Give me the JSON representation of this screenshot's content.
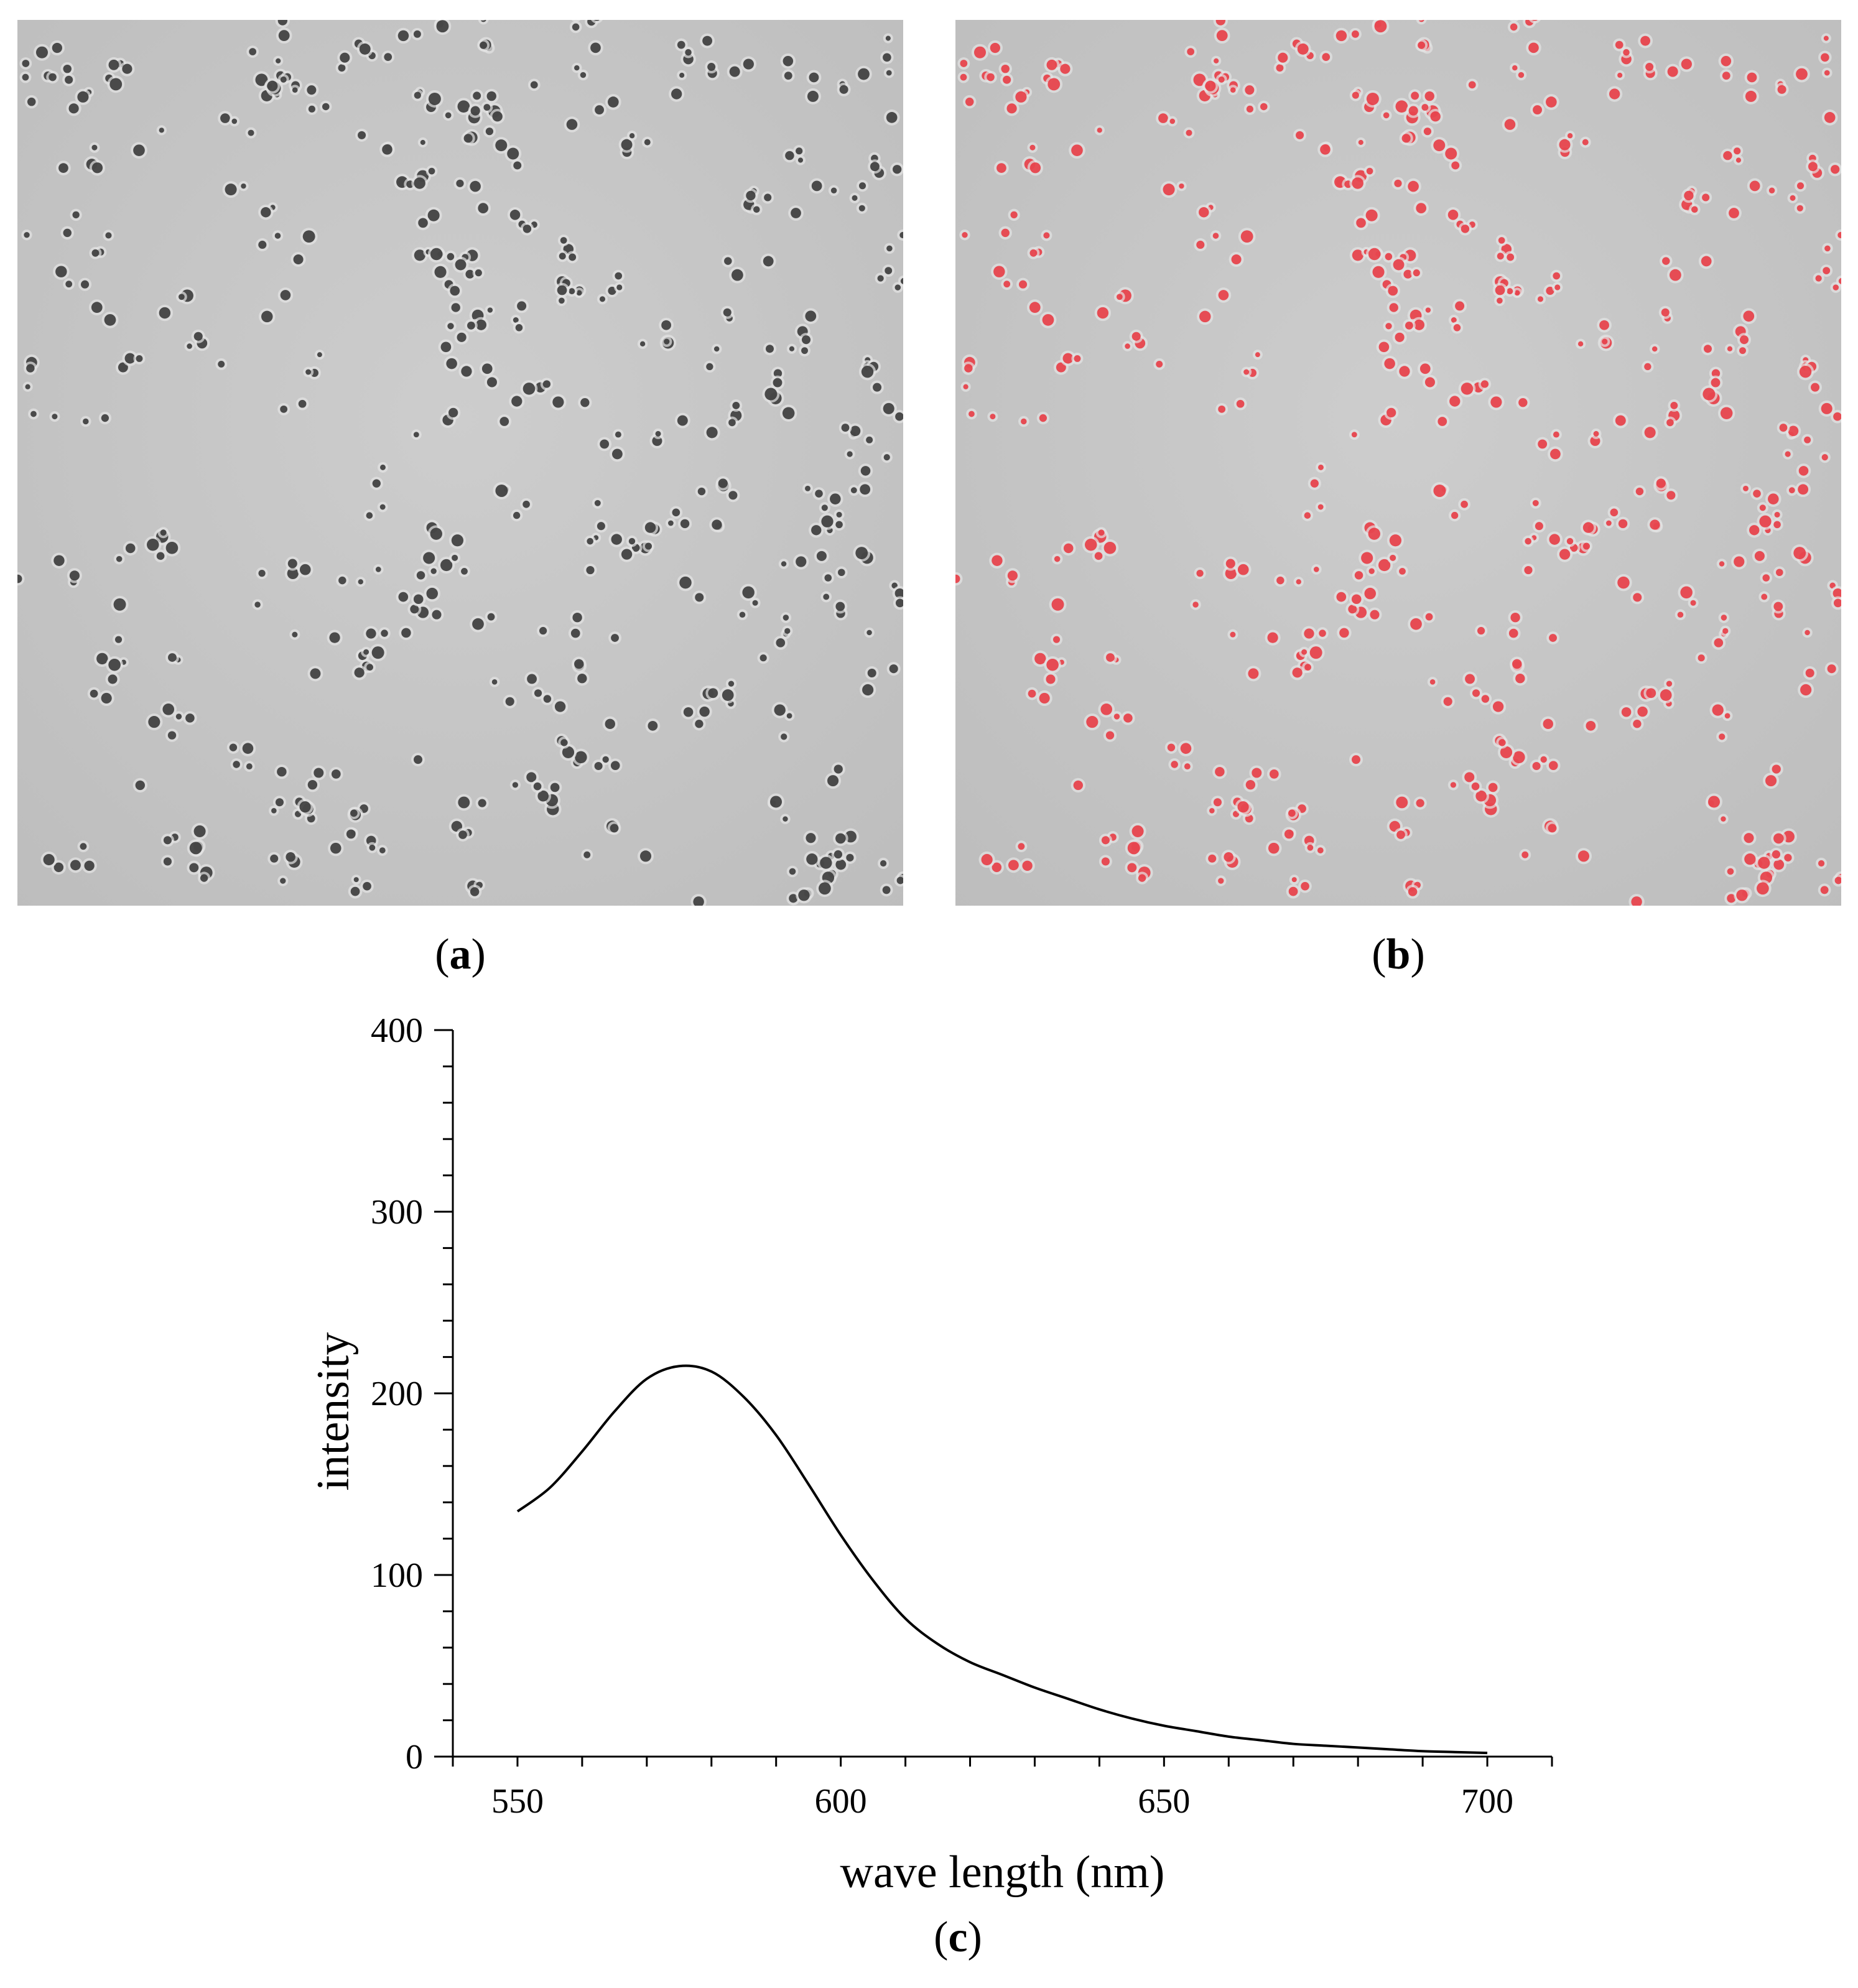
{
  "panels": {
    "a": {
      "label_open": "(",
      "label_letter": "a",
      "label_close": ")"
    },
    "b": {
      "label_open": "(",
      "label_letter": "b",
      "label_close": ")"
    },
    "c": {
      "label_open": "(",
      "label_letter": "c",
      "label_close": ")"
    }
  },
  "colors": {
    "micrograph_background": "#c6c6c6",
    "particle_dark": "#3a3a3a",
    "fluorescence_red": "#e8323c",
    "curve": "#000000"
  },
  "chart_data": {
    "type": "line",
    "title": "",
    "xlabel": "wave length (nm)",
    "ylabel": "intensity",
    "xlim": [
      540,
      710
    ],
    "ylim": [
      0,
      400
    ],
    "xticks": [
      550,
      600,
      650,
      700
    ],
    "yticks": [
      0,
      100,
      200,
      300,
      400
    ],
    "grid": false,
    "series": [
      {
        "x": [
          550,
          555,
          560,
          565,
          570,
          575,
          580,
          585,
          590,
          595,
          600,
          605,
          610,
          615,
          620,
          625,
          630,
          635,
          640,
          645,
          650,
          655,
          660,
          665,
          670,
          675,
          680,
          685,
          690,
          695,
          700
        ],
        "y": [
          135,
          148,
          168,
          190,
          208,
          215,
          212,
          198,
          177,
          150,
          122,
          97,
          76,
          62,
          52,
          45,
          38,
          32,
          26,
          21,
          17,
          14,
          11,
          9,
          7,
          6,
          5,
          4,
          3,
          2.5,
          2
        ]
      }
    ]
  }
}
